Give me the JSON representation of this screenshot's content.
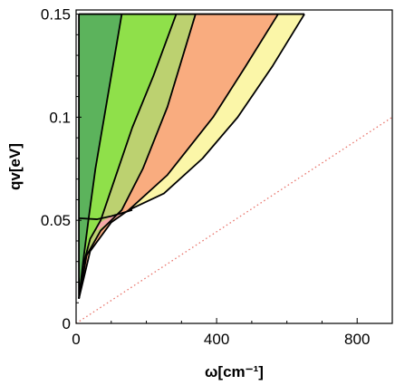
{
  "chart_data": {
    "type": "area",
    "title": "",
    "xlabel": "ω[cm⁻¹]",
    "ylabel": "qv[eV]",
    "xlim": [
      0,
      900
    ],
    "ylim": [
      0,
      0.152
    ],
    "x_ticks": [
      0,
      400,
      800
    ],
    "x_tick_labels": [
      "0",
      "400",
      "800"
    ],
    "y_ticks": [
      0,
      0.05,
      0.1,
      0.15
    ],
    "y_tick_labels": [
      "0",
      "0.05",
      "0.1",
      "0.15"
    ],
    "grid": false,
    "legend": "none",
    "regions": [
      {
        "fill": "#5cb35c",
        "lower": {
          "x": [
            8,
            20,
            35,
            55,
            80,
            110,
            130
          ],
          "y": [
            0.012,
            0.03,
            0.05,
            0.075,
            0.1,
            0.13,
            0.15
          ]
        },
        "upper": {
          "x": [
            8,
            8,
            8,
            8
          ],
          "y": [
            0.012,
            0.05,
            0.1,
            0.15
          ]
        }
      },
      {
        "fill": "#8fe04a",
        "lower": {
          "x": [
            8,
            20,
            40,
            70,
            110,
            160,
            220,
            285
          ],
          "y": [
            0.012,
            0.028,
            0.041,
            0.05,
            0.07,
            0.095,
            0.12,
            0.15
          ]
        },
        "upper": {
          "x": [
            8,
            20,
            35,
            55,
            80,
            110,
            130
          ],
          "y": [
            0.012,
            0.03,
            0.05,
            0.075,
            0.1,
            0.13,
            0.15
          ]
        }
      },
      {
        "fill": "#bcd170",
        "lower": {
          "x": [
            8,
            30,
            70,
            130,
            190,
            260,
            340
          ],
          "y": [
            0.012,
            0.033,
            0.045,
            0.055,
            0.075,
            0.105,
            0.15
          ]
        },
        "upper": {
          "x": [
            8,
            20,
            40,
            70,
            110,
            160,
            220,
            285
          ],
          "y": [
            0.012,
            0.028,
            0.041,
            0.05,
            0.07,
            0.095,
            0.12,
            0.15
          ]
        }
      },
      {
        "fill": "#f9ac7f",
        "lower": {
          "x": [
            8,
            40,
            100,
            150,
            260,
            390,
            480,
            575
          ],
          "y": [
            0.012,
            0.035,
            0.049,
            0.055,
            0.072,
            0.1,
            0.124,
            0.15
          ]
        },
        "upper": {
          "x": [
            8,
            30,
            70,
            130,
            190,
            260,
            340
          ],
          "y": [
            0.012,
            0.033,
            0.045,
            0.055,
            0.075,
            0.105,
            0.15
          ]
        }
      },
      {
        "fill": "#fbf6a8",
        "lower": {
          "x": [
            150,
            250,
            360,
            460,
            560,
            650
          ],
          "y": [
            0.055,
            0.063,
            0.08,
            0.1,
            0.125,
            0.15
          ]
        },
        "upper": {
          "x": [
            150,
            260,
            390,
            480,
            575
          ],
          "y": [
            0.055,
            0.072,
            0.1,
            0.124,
            0.15
          ]
        }
      },
      {
        "fill": "#f4a8a8",
        "lower": {
          "x": [
            60,
            100,
            150
          ],
          "y": [
            0.045,
            0.05,
            0.055
          ]
        },
        "upper": {
          "x": [
            60,
            100,
            150
          ],
          "y": [
            0.048,
            0.052,
            0.055
          ]
        }
      }
    ],
    "lines": [
      {
        "style": "solid",
        "color": "#000000",
        "x": [
          8,
          8
        ],
        "y": [
          0.012,
          0.15
        ]
      },
      {
        "style": "solid",
        "color": "#000000",
        "x": [
          8,
          20,
          35,
          55,
          80,
          110,
          130
        ],
        "y": [
          0.012,
          0.03,
          0.05,
          0.075,
          0.1,
          0.13,
          0.15
        ]
      },
      {
        "style": "solid",
        "color": "#000000",
        "x": [
          8,
          20,
          40,
          70,
          110,
          160,
          220,
          285
        ],
        "y": [
          0.012,
          0.028,
          0.041,
          0.05,
          0.07,
          0.095,
          0.12,
          0.15
        ]
      },
      {
        "style": "solid",
        "color": "#000000",
        "x": [
          8,
          30,
          70,
          130,
          190,
          260,
          340
        ],
        "y": [
          0.012,
          0.033,
          0.045,
          0.055,
          0.075,
          0.105,
          0.15
        ]
      },
      {
        "style": "solid",
        "color": "#000000",
        "x": [
          8,
          40,
          100,
          150,
          260,
          390,
          480,
          575
        ],
        "y": [
          0.012,
          0.035,
          0.049,
          0.055,
          0.072,
          0.1,
          0.124,
          0.15
        ]
      },
      {
        "style": "solid",
        "color": "#000000",
        "x": [
          150,
          250,
          360,
          460,
          560,
          650
        ],
        "y": [
          0.055,
          0.063,
          0.08,
          0.1,
          0.125,
          0.15
        ]
      },
      {
        "style": "solid",
        "color": "#000000",
        "x": [
          8,
          60,
          100,
          140,
          160
        ],
        "y": [
          0.051,
          0.0505,
          0.052,
          0.054,
          0.055
        ]
      },
      {
        "style": "solid",
        "color": "#000000",
        "x": [
          8,
          650
        ],
        "y": [
          0.15,
          0.15
        ]
      },
      {
        "style": "dotted",
        "color": "#e8736a",
        "x": [
          0,
          900
        ],
        "y": [
          0,
          0.1
        ]
      }
    ]
  }
}
